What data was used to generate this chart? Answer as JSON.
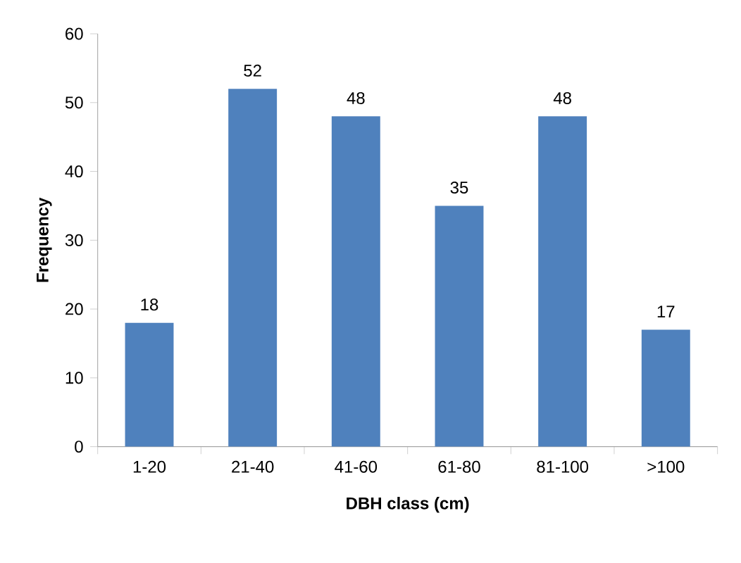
{
  "chart_data": {
    "type": "bar",
    "xlabel": "DBH class (cm)",
    "ylabel": "Frequency",
    "categories": [
      "1-20",
      "21-40",
      "41-60",
      "61-80",
      "81-100",
      ">100"
    ],
    "values": [
      18,
      52,
      48,
      35,
      48,
      17
    ],
    "color": "#4f81bd",
    "ylim": [
      0,
      60
    ],
    "yticks": [
      0,
      10,
      20,
      30,
      40,
      50,
      60
    ],
    "data_labels": true
  }
}
